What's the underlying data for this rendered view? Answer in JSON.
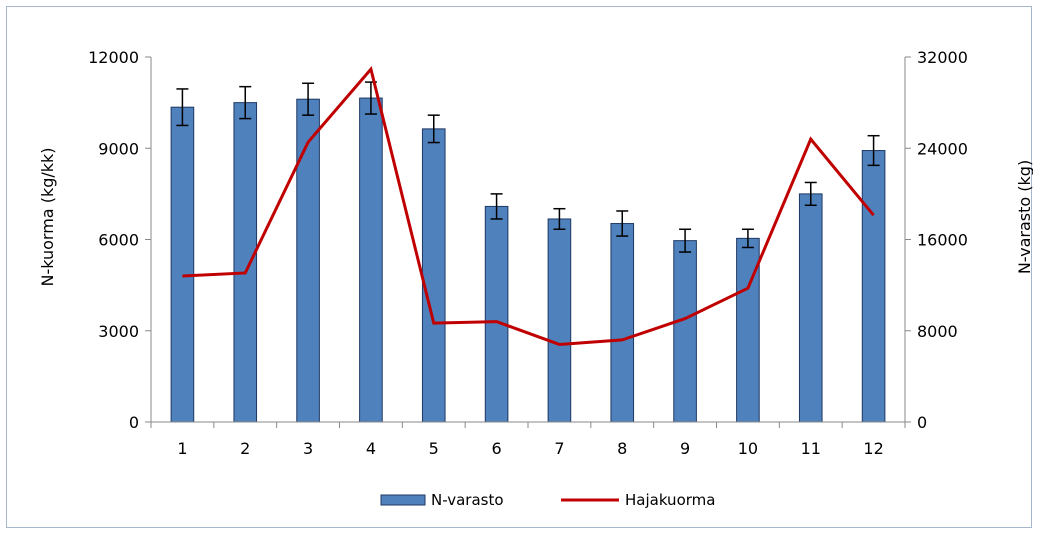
{
  "chart_data": {
    "type": "bar+line",
    "categories": [
      "1",
      "2",
      "3",
      "4",
      "5",
      "6",
      "7",
      "8",
      "9",
      "10",
      "11",
      "12"
    ],
    "series": [
      {
        "name": "N-varasto",
        "type": "bar",
        "axis": "right",
        "values": [
          27600,
          28000,
          28300,
          28400,
          25700,
          18900,
          17800,
          17400,
          15900,
          16100,
          20000,
          23800
        ],
        "error": [
          1600,
          1400,
          1400,
          1400,
          1200,
          1100,
          900,
          1100,
          1000,
          800,
          1000,
          1300
        ],
        "color": "#4f81bd",
        "border": "#1f3864"
      },
      {
        "name": "Hajakuorma",
        "type": "line",
        "axis": "left",
        "values": [
          4800,
          4900,
          9200,
          11600,
          3250,
          3300,
          2550,
          2700,
          3400,
          4400,
          9300,
          6800
        ],
        "color": "#c00000"
      }
    ],
    "y_left": {
      "label": "N-kuorma (kg/kk)",
      "min": 0,
      "max": 12000,
      "ticks": [
        "0",
        "3000",
        "6000",
        "9000",
        "12000"
      ]
    },
    "y_right": {
      "label": "N-varasto (kg)",
      "min": 0,
      "max": 32000,
      "ticks": [
        "0",
        "8000",
        "16000",
        "24000",
        "32000"
      ]
    },
    "legend": {
      "placement": "bottom"
    },
    "grid": false
  }
}
